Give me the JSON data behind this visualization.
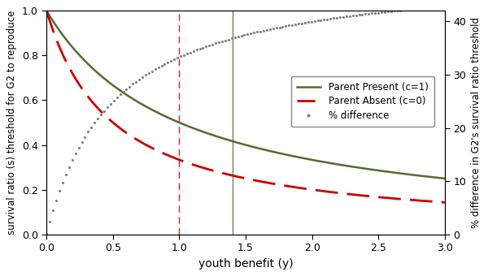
{
  "x_min": 0.0,
  "x_max": 3.0,
  "y_left_min": 0.0,
  "y_left_max": 1.0,
  "y_right_min": 0.0,
  "y_right_max": 42.0,
  "xlabel": "youth benefit (y)",
  "ylabel_left": "survival ratio (s) threshold for G2 to reproduce",
  "ylabel_right": "% difference in G2's survival ratio threshold",
  "vline_red": 1.0,
  "vline_green": 1.4,
  "color_present": "#556B2F",
  "color_absent": "#CC0000",
  "color_pct": "#808080",
  "legend_labels": [
    "Parent Present (c=1)",
    "Parent Absent (c=0)",
    "% difference"
  ],
  "background_color": "#FFFFFF",
  "yticks_left": [
    0.0,
    0.2,
    0.4,
    0.6,
    0.8,
    1.0
  ],
  "yticks_right": [
    0,
    10,
    20,
    30,
    40
  ],
  "xticks": [
    0.0,
    0.5,
    1.0,
    1.5,
    2.0,
    2.5,
    3.0
  ],
  "figsize": [
    6.0,
    3.4
  ],
  "dpi": 100
}
